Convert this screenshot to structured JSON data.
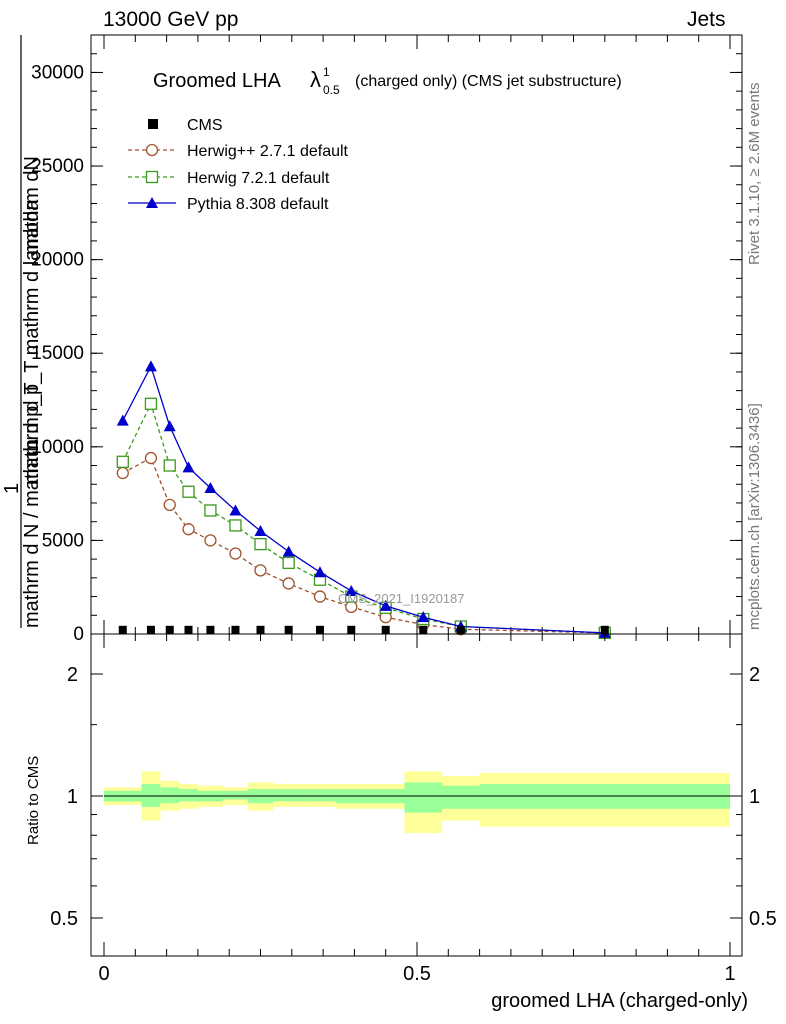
{
  "header": {
    "energy_label": "13000 GeV pp",
    "category_label": "Jets"
  },
  "side_labels": {
    "rivet": "Rivet 3.1.10, ≥ 2.6M events",
    "mcplots": "mcplots.cern.ch [arXiv:1306.3436]"
  },
  "watermark": "CMS_2021_I1920187",
  "colors": {
    "cms": "#000000",
    "herwig_pp": "#a0522d",
    "herwig7": "#3a9a1a",
    "pythia": "#0000cc",
    "band_outer": "#ffff99",
    "band_inner": "#99ff99"
  },
  "chart_data": [
    {
      "type": "line",
      "title": "Groomed LHA",
      "title_symbol": "λ",
      "title_sup": "1",
      "title_sub": "0.5",
      "title_suffix": "(charged only) (CMS jet substructure)",
      "ylabel": {
        "prefix": "1",
        "frac_num": "mathrm d²N",
        "frac_den": "mathrm d p_T mathrm d lambda",
        "denominator": "mathrm d N / mathrm d p_T"
      },
      "ylabel_lines": [
        "mathrm dN",
        "mathrm d p_T mathrm d lambda",
        "mathrm d N / mathrm d p_T"
      ],
      "xlim": [
        0,
        1
      ],
      "ylim": [
        0,
        32000
      ],
      "yticks": [
        0,
        5000,
        10000,
        15000,
        20000,
        25000,
        30000
      ],
      "ytick_labels": [
        "0",
        "5000",
        "10000",
        "15000",
        "20000",
        "25000",
        "30000"
      ],
      "legend_position": "top-left",
      "x": [
        0.03,
        0.075,
        0.105,
        0.135,
        0.17,
        0.21,
        0.25,
        0.295,
        0.345,
        0.395,
        0.45,
        0.51,
        0.57,
        0.8
      ],
      "series": [
        {
          "name": "CMS",
          "marker": "square",
          "values": [
            10,
            10,
            10,
            10,
            10,
            10,
            10,
            10,
            10,
            10,
            10,
            10,
            10,
            10
          ]
        },
        {
          "name": "Herwig++ 2.7.1 default",
          "marker": "circle",
          "values": [
            8600,
            9400,
            6900,
            5600,
            5000,
            4300,
            3400,
            2700,
            2000,
            1450,
            900,
            500,
            250,
            60
          ]
        },
        {
          "name": "Herwig 7.2.1 default",
          "marker": "open-square",
          "values": [
            9200,
            12300,
            9000,
            7600,
            6600,
            5800,
            4800,
            3800,
            2900,
            2000,
            1400,
            800,
            400,
            60
          ]
        },
        {
          "name": "Pythia 8.308 default",
          "marker": "triangle",
          "values": [
            11400,
            14300,
            11100,
            8900,
            7800,
            6600,
            5500,
            4400,
            3300,
            2300,
            1500,
            900,
            400,
            60
          ]
        }
      ]
    },
    {
      "type": "area",
      "ylabel": "Ratio to CMS",
      "xlabel": "groomed LHA (charged-only)",
      "xlim": [
        0,
        1
      ],
      "ylim": [
        0.4,
        2.3
      ],
      "xticks": [
        0,
        0.5,
        1
      ],
      "xtick_labels": [
        "0",
        "0.5",
        "1"
      ],
      "yticks": [
        0.5,
        1,
        2
      ],
      "ytick_labels": [
        "0.5",
        "1",
        "2"
      ],
      "reference_line": 1,
      "bin_edges": [
        0,
        0.06,
        0.09,
        0.12,
        0.15,
        0.19,
        0.23,
        0.27,
        0.32,
        0.37,
        0.48,
        0.54,
        0.6,
        1.0
      ],
      "bands": {
        "outer_low": [
          0.95,
          0.87,
          0.92,
          0.93,
          0.94,
          0.95,
          0.92,
          0.94,
          0.94,
          0.93,
          0.81,
          0.87,
          0.84
        ],
        "outer_high": [
          1.05,
          1.15,
          1.09,
          1.07,
          1.06,
          1.05,
          1.08,
          1.07,
          1.07,
          1.07,
          1.15,
          1.12,
          1.14
        ],
        "inner_low": [
          0.97,
          0.94,
          0.96,
          0.97,
          0.97,
          0.98,
          0.96,
          0.97,
          0.97,
          0.96,
          0.91,
          0.93,
          0.93
        ],
        "inner_high": [
          1.03,
          1.07,
          1.05,
          1.04,
          1.03,
          1.03,
          1.04,
          1.04,
          1.04,
          1.04,
          1.08,
          1.06,
          1.07
        ]
      }
    }
  ]
}
